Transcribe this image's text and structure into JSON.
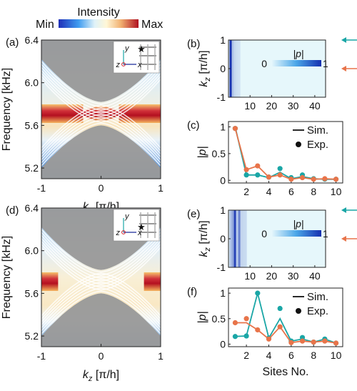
{
  "colors": {
    "theory_band": "#9a9a9a",
    "sim_teal": "#1aa6a6",
    "exp_orange": "#e8744a",
    "intensity_min": "#1f2fb8",
    "intensity_max": "#b01020"
  },
  "colorbar": {
    "title": "Intensity",
    "min_label": "Min",
    "max_label": "Max"
  },
  "inset": {
    "y": "y",
    "z": "z",
    "x": "x"
  },
  "chart_data": [
    {
      "id": "a",
      "panel_label": "(a)",
      "type": "heatmap",
      "xlabel_main": "k",
      "xlabel_sub": "z",
      "xlabel_unit": "[π/h]",
      "ylabel": "Frequency [kHz]",
      "x_ticks": [
        "-1",
        "0",
        "1"
      ],
      "y_ticks": [
        "6.4",
        "6.0",
        "5.6",
        "5.2"
      ],
      "xlim": [
        -1,
        1
      ],
      "ylim": [
        5.1,
        6.4
      ],
      "hot_band": {
        "freq_kHz": 5.71,
        "style": "gapped"
      },
      "inset_star": "top"
    },
    {
      "id": "b",
      "panel_label": "(b)",
      "type": "heatmap",
      "xlabel": "",
      "ylabel_main": "k",
      "ylabel_sub": "z",
      "ylabel_unit": "[π/h]",
      "x_ticks": [
        "10",
        "20",
        "30",
        "40"
      ],
      "y_ticks": [
        "1",
        "0",
        "-1"
      ],
      "xlim": [
        0,
        45
      ],
      "ylim": [
        -1,
        1
      ],
      "colorbar_label": "|p|",
      "colorbar_ticks": [
        "0",
        "1"
      ],
      "column_intensity": [
        1.0,
        0.18,
        0.08,
        0.04,
        0.02
      ],
      "arrows": [
        "teal at kz=1",
        "orange at kz=0"
      ]
    },
    {
      "id": "c",
      "panel_label": "(c)",
      "type": "line",
      "ylabel": "|p|",
      "x_ticks": [
        "2",
        "4",
        "6",
        "8",
        "10"
      ],
      "y_ticks": [
        "0",
        "0.5",
        "1"
      ],
      "xlim": [
        0.4,
        10.6
      ],
      "ylim": [
        -0.05,
        1.1
      ],
      "legend": [
        "Sim.",
        "Exp."
      ],
      "x": [
        1,
        2,
        3,
        4,
        5,
        6,
        7,
        8,
        9,
        10
      ],
      "series": [
        {
          "color": "teal",
          "sim": [
            1.0,
            0.1,
            0.1,
            0.05,
            0.15,
            0.03,
            0.07,
            0.03,
            0.02,
            0.02
          ],
          "exp": [
            0.97,
            0.1,
            0.1,
            0.06,
            0.22,
            0.05,
            0.1,
            0.03,
            0.02,
            0.02
          ]
        },
        {
          "color": "orange",
          "sim": [
            0.97,
            0.2,
            0.27,
            0.06,
            0.1,
            0.02,
            0.05,
            0.02,
            0.03,
            0.02
          ],
          "exp": [
            0.97,
            0.2,
            0.27,
            0.06,
            0.1,
            0.02,
            0.05,
            0.02,
            0.03,
            0.02
          ]
        }
      ]
    },
    {
      "id": "d",
      "panel_label": "(d)",
      "type": "heatmap",
      "xlabel_main": "k",
      "xlabel_sub": "z",
      "xlabel_unit": "[π/h]",
      "ylabel": "Frequency [kHz]",
      "x_ticks": [
        "-1",
        "0",
        "1"
      ],
      "y_ticks": [
        "6.4",
        "6.0",
        "5.6",
        "5.2"
      ],
      "xlim": [
        -1,
        1
      ],
      "ylim": [
        5.1,
        6.4
      ],
      "hot_band": {
        "freq_kHz": 5.71,
        "style": "edges"
      },
      "inset_star": "middle"
    },
    {
      "id": "e",
      "panel_label": "(e)",
      "type": "heatmap",
      "xlabel": "",
      "ylabel_main": "k",
      "ylabel_sub": "z",
      "ylabel_unit": "[π/h]",
      "x_ticks": [
        "10",
        "20",
        "30",
        "40"
      ],
      "y_ticks": [
        "1",
        "0",
        "-1"
      ],
      "xlim": [
        0,
        45
      ],
      "ylim": [
        -1,
        1
      ],
      "colorbar_label": "|p|",
      "colorbar_ticks": [
        "0",
        "1"
      ],
      "column_intensity": [
        0.2,
        0.35,
        0.9,
        0.15,
        0.55,
        0.1,
        0.08,
        0.06
      ],
      "arrows": [
        "teal at kz=1",
        "orange at kz=0"
      ]
    },
    {
      "id": "f",
      "panel_label": "(f)",
      "type": "line",
      "xlabel": "Sites No.",
      "ylabel": "|p|",
      "x_ticks": [
        "2",
        "4",
        "6",
        "8",
        "10"
      ],
      "y_ticks": [
        "0",
        "0.5",
        "1"
      ],
      "xlim": [
        0.4,
        10.6
      ],
      "ylim": [
        -0.05,
        1.1
      ],
      "legend": [
        "Sim.",
        "Exp."
      ],
      "x": [
        1,
        2,
        3,
        4,
        5,
        6,
        7,
        8,
        9,
        10
      ],
      "series": [
        {
          "color": "teal",
          "sim": [
            0.15,
            0.16,
            1.0,
            0.12,
            0.5,
            0.06,
            0.1,
            0.04,
            0.1,
            0.02
          ],
          "exp": [
            0.15,
            0.16,
            1.0,
            0.12,
            0.7,
            0.06,
            0.13,
            0.04,
            0.1,
            0.02
          ]
        },
        {
          "color": "orange",
          "sim": [
            0.42,
            0.42,
            0.28,
            0.1,
            0.34,
            0.03,
            0.06,
            0.04,
            0.06,
            0.02
          ],
          "exp": [
            0.42,
            0.5,
            0.28,
            0.1,
            0.34,
            0.03,
            0.06,
            0.04,
            0.06,
            0.02
          ]
        }
      ]
    }
  ]
}
